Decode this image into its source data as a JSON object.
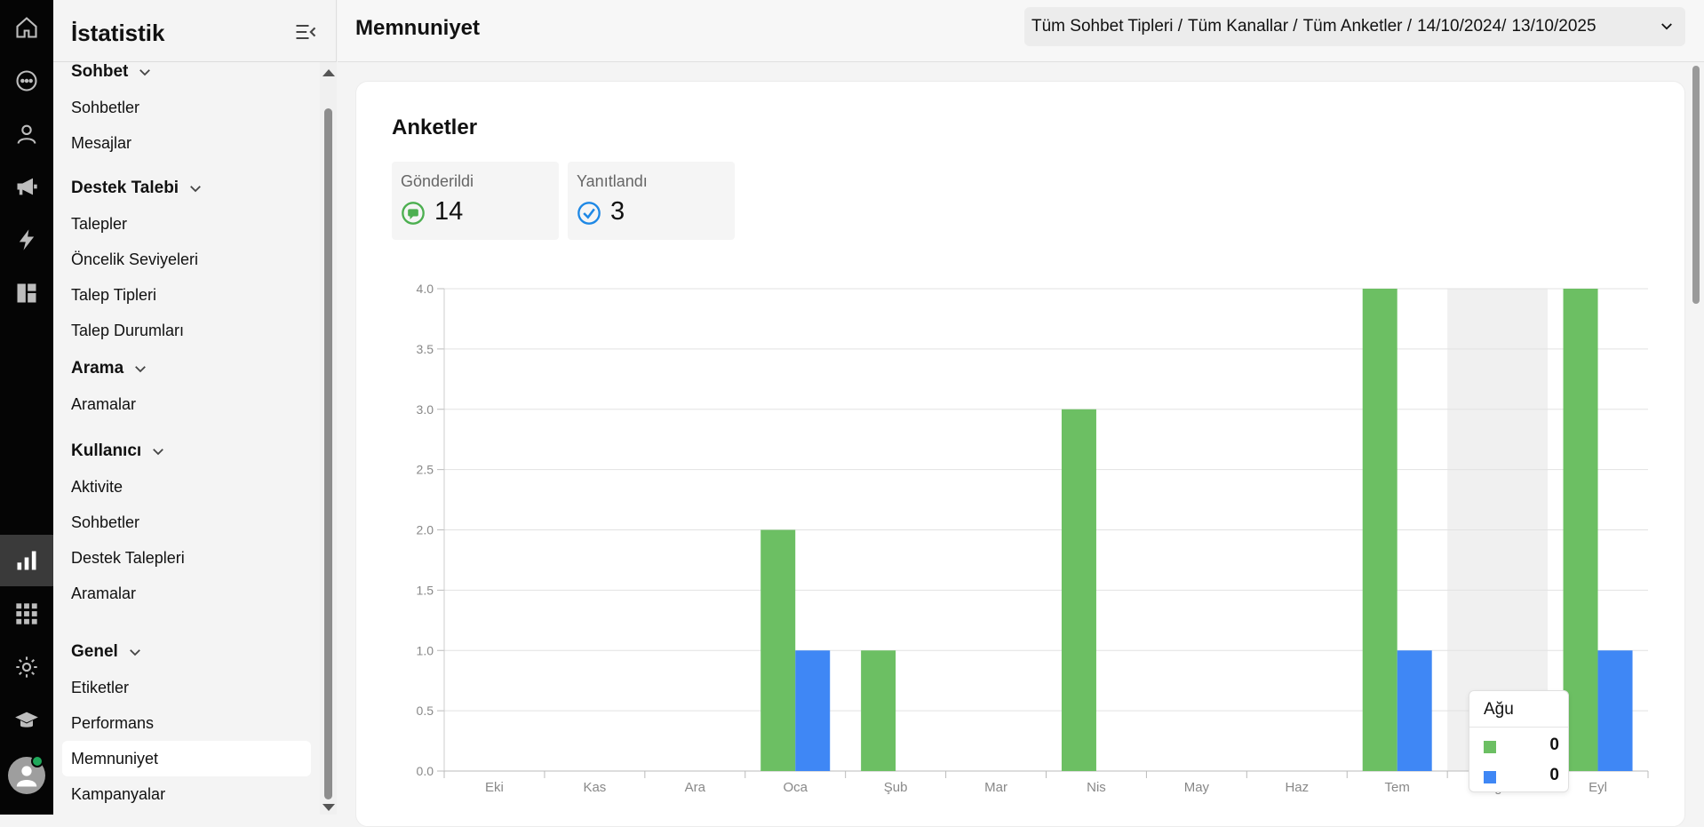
{
  "rail": {
    "items": [
      "home-icon",
      "chat-icon",
      "user-icon",
      "megaphone-icon",
      "bolt-icon",
      "dashboard-icon",
      "chart-icon",
      "apps-icon",
      "gear-icon",
      "graduation-icon"
    ],
    "active": "chart-icon"
  },
  "sidebar": {
    "title": "İstatistik",
    "sections": [
      {
        "label": "Sohbet",
        "items": [
          "Sohbetler",
          "Mesajlar"
        ]
      },
      {
        "label": "Destek Talebi",
        "items": [
          "Talepler",
          "Öncelik Seviyeleri",
          "Talep Tipleri",
          "Talep Durumları"
        ]
      },
      {
        "label": "Arama",
        "items": [
          "Aramalar"
        ]
      },
      {
        "label": "Kullanıcı",
        "items": [
          "Aktivite",
          "Sohbetler",
          "Destek Talepleri",
          "Aramalar"
        ]
      },
      {
        "label": "Genel",
        "items": [
          "Etiketler",
          "Performans",
          "Memnuniyet",
          "Kampanyalar"
        ]
      }
    ],
    "active_item": "Memnuniyet"
  },
  "header": {
    "title": "Memnuniyet",
    "filters": [
      "Tüm Sohbet Tipleri /",
      "Tüm Kanallar /",
      "Tüm Anketler /",
      "14/10/2024/",
      "13/10/2025"
    ]
  },
  "card": {
    "title": "Anketler",
    "stats": [
      {
        "label": "Gönderildi",
        "value": "14",
        "icon": "survey-sent-icon",
        "color": "#4caf50"
      },
      {
        "label": "Yanıtlandı",
        "value": "3",
        "icon": "survey-answered-icon",
        "color": "#1e88e5"
      }
    ]
  },
  "chart_data": {
    "type": "bar",
    "categories": [
      "Eki",
      "Kas",
      "Ara",
      "Oca",
      "Şub",
      "Mar",
      "Nis",
      "May",
      "Haz",
      "Tem",
      "Ağu",
      "Eyl"
    ],
    "series": [
      {
        "values": [
          0,
          0,
          0,
          2,
          1,
          0,
          3,
          0,
          0,
          4,
          0,
          4
        ],
        "color": "#6cbf63"
      },
      {
        "values": [
          0,
          0,
          0,
          1,
          0,
          0,
          0,
          0,
          0,
          1,
          0,
          1
        ],
        "color": "#3f87f5"
      }
    ],
    "yticks": [
      "0.0",
      "0.5",
      "1.0",
      "1.5",
      "2.0",
      "2.5",
      "3.0",
      "3.5",
      "4.0"
    ],
    "ylim": [
      0,
      4
    ],
    "grid": true,
    "highlighted_category": "Ağu"
  },
  "tooltip": {
    "title": "Ağu",
    "rows": [
      {
        "color": "#6cbf63",
        "value": "0"
      },
      {
        "color": "#3f87f5",
        "value": "0"
      }
    ]
  }
}
